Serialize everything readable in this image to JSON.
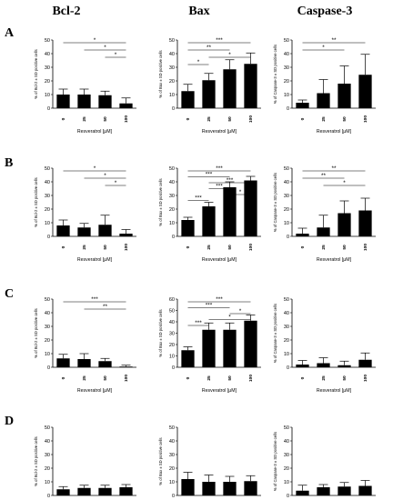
{
  "columns": [
    "Bcl-2",
    "Bax",
    "Caspase-3"
  ],
  "rows": [
    "A",
    "B",
    "C",
    "D"
  ],
  "chart_data": [
    {
      "type": "bar",
      "row": "A",
      "col": "Bcl-2",
      "categories": [
        "0",
        "25",
        "50",
        "100"
      ],
      "values": [
        10,
        10,
        9.5,
        3.5
      ],
      "errors": [
        4,
        4,
        3,
        4
      ],
      "ylim": [
        0,
        50
      ],
      "yticks": [
        0,
        10,
        20,
        30,
        40,
        50
      ],
      "ylabel": "% of Bcl-2 ± SD positive cells",
      "xlabel": "Resveratrol [μM]",
      "significance": [
        {
          "from": 0,
          "to": 3,
          "label": "*"
        },
        {
          "from": 1,
          "to": 3,
          "label": "*"
        },
        {
          "from": 2,
          "to": 3,
          "label": "*"
        }
      ]
    },
    {
      "type": "bar",
      "row": "A",
      "col": "Bax",
      "categories": [
        "0",
        "25",
        "50",
        "100"
      ],
      "values": [
        12.5,
        20.5,
        28.5,
        32.5
      ],
      "errors": [
        5,
        5,
        7,
        8
      ],
      "ylim": [
        0,
        50
      ],
      "yticks": [
        0,
        10,
        20,
        30,
        40,
        50
      ],
      "ylabel": "% of Bax ± SD positive cells",
      "xlabel": "Resveratrol [μM]",
      "significance": [
        {
          "from": 0,
          "to": 3,
          "label": "***"
        },
        {
          "from": 0,
          "to": 2,
          "label": "**"
        },
        {
          "from": 1,
          "to": 3,
          "label": "*"
        },
        {
          "from": 0,
          "to": 1,
          "label": "*"
        }
      ]
    },
    {
      "type": "bar",
      "row": "A",
      "col": "Caspase-3",
      "categories": [
        "0",
        "25",
        "50",
        "100"
      ],
      "values": [
        4,
        11,
        18,
        24.5
      ],
      "errors": [
        2,
        10,
        13,
        15
      ],
      "ylim": [
        0,
        50
      ],
      "yticks": [
        0,
        10,
        20,
        30,
        40,
        50
      ],
      "ylabel": "% of Caspase-3 ± SD positive cells",
      "xlabel": "Resveratrol [μM]",
      "significance": [
        {
          "from": 0,
          "to": 3,
          "label": "**"
        },
        {
          "from": 0,
          "to": 2,
          "label": "*"
        }
      ]
    },
    {
      "type": "bar",
      "row": "B",
      "col": "Bcl-2",
      "categories": [
        "0",
        "25",
        "50",
        "100"
      ],
      "values": [
        8,
        6.5,
        8.5,
        2
      ],
      "errors": [
        4,
        3,
        7,
        3
      ],
      "ylim": [
        0,
        50
      ],
      "yticks": [
        0,
        10,
        20,
        30,
        40,
        50
      ],
      "ylabel": "% of Bcl-2 ± SD positive cells",
      "xlabel": "Resveratrol [μM]",
      "significance": [
        {
          "from": 0,
          "to": 3,
          "label": "*"
        },
        {
          "from": 1,
          "to": 3,
          "label": "*"
        },
        {
          "from": 2,
          "to": 3,
          "label": "*"
        }
      ]
    },
    {
      "type": "bar",
      "row": "B",
      "col": "Bax",
      "categories": [
        "0",
        "25",
        "50",
        "100"
      ],
      "values": [
        12,
        22,
        36,
        41
      ],
      "errors": [
        2,
        3,
        4,
        3
      ],
      "ylim": [
        0,
        50
      ],
      "yticks": [
        0,
        10,
        20,
        30,
        40,
        50
      ],
      "ylabel": "% of Bax ± SD positive cells",
      "xlabel": "Resveratrol [μM]",
      "significance": [
        {
          "from": 0,
          "to": 3,
          "label": "***"
        },
        {
          "from": 0,
          "to": 2,
          "label": "***"
        },
        {
          "from": 1,
          "to": 3,
          "label": "***"
        },
        {
          "from": 1,
          "to": 2,
          "label": "***"
        },
        {
          "from": 2,
          "to": 3,
          "label": "*"
        },
        {
          "from": 0,
          "to": 1,
          "label": "***"
        }
      ]
    },
    {
      "type": "bar",
      "row": "B",
      "col": "Caspase-3",
      "categories": [
        "0",
        "25",
        "50",
        "100"
      ],
      "values": [
        2,
        6.5,
        17,
        19
      ],
      "errors": [
        4,
        9,
        9,
        9
      ],
      "ylim": [
        0,
        50
      ],
      "yticks": [
        0,
        10,
        20,
        30,
        40,
        50
      ],
      "ylabel": "% of Caspase-3 ± SD positive cells",
      "xlabel": "Resveratrol [μM]",
      "significance": [
        {
          "from": 0,
          "to": 3,
          "label": "**"
        },
        {
          "from": 0,
          "to": 2,
          "label": "**"
        },
        {
          "from": 1,
          "to": 3,
          "label": "*"
        }
      ]
    },
    {
      "type": "bar",
      "row": "C",
      "col": "Bcl-2",
      "categories": [
        "0",
        "25",
        "50",
        "100"
      ],
      "values": [
        6.5,
        6,
        4.5,
        0.5
      ],
      "errors": [
        3,
        4,
        2,
        1
      ],
      "ylim": [
        0,
        50
      ],
      "yticks": [
        0,
        10,
        20,
        30,
        40,
        50
      ],
      "ylabel": "% of Bcl-2 ± SD positive cells",
      "xlabel": "Resveratrol [μM]",
      "significance": [
        {
          "from": 0,
          "to": 3,
          "label": "***"
        },
        {
          "from": 1,
          "to": 3,
          "label": "**"
        }
      ]
    },
    {
      "type": "bar",
      "row": "C",
      "col": "Bax",
      "categories": [
        "0",
        "25",
        "50",
        "100"
      ],
      "values": [
        15,
        33,
        33,
        41
      ],
      "errors": [
        3,
        6,
        6,
        5
      ],
      "ylim": [
        0,
        60
      ],
      "yticks": [
        0,
        10,
        20,
        30,
        40,
        50,
        60
      ],
      "ylabel": "% of Bax ± SD positive cells",
      "xlabel": "Resveratrol [μM]",
      "significance": [
        {
          "from": 0,
          "to": 3,
          "label": "***"
        },
        {
          "from": 0,
          "to": 2,
          "label": "***"
        },
        {
          "from": 2,
          "to": 3,
          "label": "*"
        },
        {
          "from": 1,
          "to": 3,
          "label": "*"
        },
        {
          "from": 0,
          "to": 1,
          "label": "***"
        }
      ]
    },
    {
      "type": "bar",
      "row": "C",
      "col": "Caspase-3",
      "categories": [
        "0",
        "25",
        "50",
        "100"
      ],
      "values": [
        2,
        3,
        1.5,
        5.5
      ],
      "errors": [
        3,
        4,
        3,
        5
      ],
      "ylim": [
        0,
        50
      ],
      "yticks": [
        0,
        10,
        20,
        30,
        40,
        50
      ],
      "ylabel": "% of Caspase-3 ± SD positive cells",
      "xlabel": "Resveratrol [μM]",
      "significance": []
    },
    {
      "type": "bar",
      "row": "D",
      "col": "Bcl-2",
      "categories": [
        "0",
        "25",
        "50",
        "100"
      ],
      "values": [
        4.5,
        5.5,
        5.5,
        6
      ],
      "errors": [
        2,
        2,
        2,
        2
      ],
      "ylim": [
        0,
        50
      ],
      "yticks": [
        0,
        10,
        20,
        30,
        40,
        50
      ],
      "ylabel": "% of Bcl-2 ± SD positive cells",
      "xlabel": "Resveratrol [μM]",
      "significance": []
    },
    {
      "type": "bar",
      "row": "D",
      "col": "Bax",
      "categories": [
        "0",
        "25",
        "50",
        "100"
      ],
      "values": [
        12,
        10,
        10,
        10.5
      ],
      "errors": [
        5,
        5,
        4,
        4
      ],
      "ylim": [
        0,
        50
      ],
      "yticks": [
        0,
        10,
        20,
        30,
        40,
        50
      ],
      "ylabel": "% of Bax ± SD positive cells",
      "xlabel": "Resveratrol [μM]",
      "significance": []
    },
    {
      "type": "bar",
      "row": "D",
      "col": "Caspase-3",
      "categories": [
        "0",
        "25",
        "50",
        "100"
      ],
      "values": [
        3.5,
        6,
        6.5,
        7
      ],
      "errors": [
        4,
        2,
        3,
        4
      ],
      "ylim": [
        0,
        50
      ],
      "yticks": [
        0,
        10,
        20,
        30,
        40,
        50
      ],
      "ylabel": "% of Caspase-3 ± SD positive cells",
      "xlabel": "Resveratrol [μM]",
      "significance": []
    }
  ]
}
